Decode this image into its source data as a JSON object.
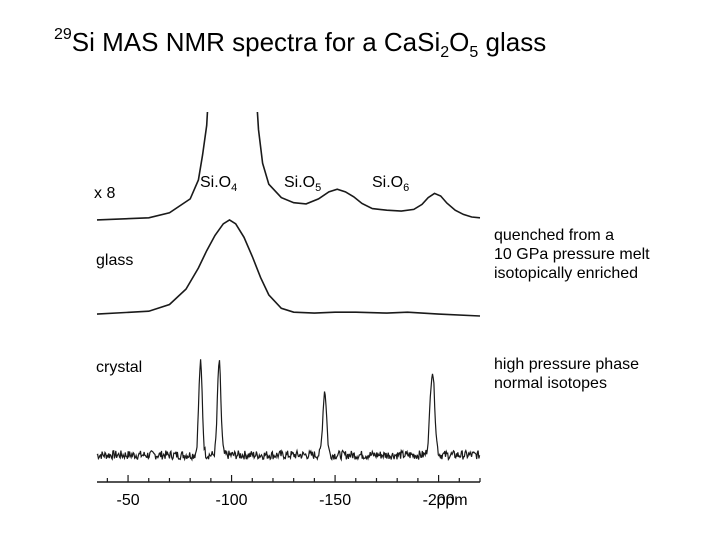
{
  "chart_data": {
    "type": "line",
    "title_prefix": "29",
    "title_main": "Si MAS NMR spectra for a CaSi",
    "title_sub1": "2",
    "title_mid": "O",
    "title_sub2": "5",
    "title_end": " glass",
    "x_unit_label": "ppm",
    "xlim": [
      -35,
      -220
    ],
    "x_ticks": [
      -50,
      -100,
      -150,
      -200
    ],
    "x_tick_labels": [
      "-50",
      "-100",
      "-150",
      "-200"
    ],
    "peak_labels": [
      {
        "base": "Si.O",
        "sub": "4",
        "x": -98
      },
      {
        "base": "Si.O",
        "sub": "5",
        "x": -150
      },
      {
        "base": "Si.O",
        "sub": "6",
        "x": -198
      }
    ],
    "series": [
      {
        "name": "x 8",
        "x": [
          -35,
          -60,
          -70,
          -80,
          -84,
          -86,
          -88,
          -89,
          -90,
          -110,
          -112,
          -113,
          -115,
          -118,
          -124,
          -130,
          -136,
          -142,
          -147,
          -151,
          -155,
          -159,
          -163,
          -168,
          -175,
          -182,
          -188,
          -192,
          -195,
          -198,
          -201,
          -204,
          -208,
          -212,
          -216,
          -220
        ],
        "y": [
          0.05,
          0.1,
          0.22,
          0.55,
          1.0,
          1.6,
          2.3,
          3.2,
          3.8,
          3.8,
          3.0,
          2.2,
          1.4,
          0.9,
          0.58,
          0.46,
          0.43,
          0.55,
          0.72,
          0.78,
          0.72,
          0.6,
          0.44,
          0.32,
          0.28,
          0.26,
          0.3,
          0.42,
          0.58,
          0.68,
          0.62,
          0.45,
          0.28,
          0.18,
          0.12,
          0.1
        ]
      },
      {
        "name": "glass",
        "x": [
          -35,
          -60,
          -70,
          -78,
          -84,
          -88,
          -92,
          -96,
          -99,
          -102,
          -106,
          -110,
          -114,
          -118,
          -124,
          -130,
          -140,
          -150,
          -160,
          -175,
          -185,
          -200,
          -220
        ],
        "y": [
          0.02,
          0.05,
          0.12,
          0.28,
          0.5,
          0.68,
          0.84,
          0.96,
          1.0,
          0.96,
          0.82,
          0.62,
          0.4,
          0.22,
          0.08,
          0.04,
          0.03,
          0.04,
          0.04,
          0.03,
          0.04,
          0.02,
          0.0
        ]
      },
      {
        "name": "crystal",
        "peaks": [
          {
            "x": -85,
            "h": 0.92,
            "w": 1.2
          },
          {
            "x": -94,
            "h": 0.92,
            "w": 1.2
          },
          {
            "x": -145,
            "h": 0.64,
            "w": 1.3
          },
          {
            "x": -197,
            "h": 0.84,
            "w": 1.6
          }
        ]
      }
    ]
  },
  "notes": {
    "glass": [
      "quenched from a",
      "10 GPa pressure melt",
      "isotopically enriched"
    ],
    "crystal": [
      "high pressure phase",
      "normal isotopes"
    ]
  },
  "colors": {
    "line": "#1a1a1a"
  }
}
